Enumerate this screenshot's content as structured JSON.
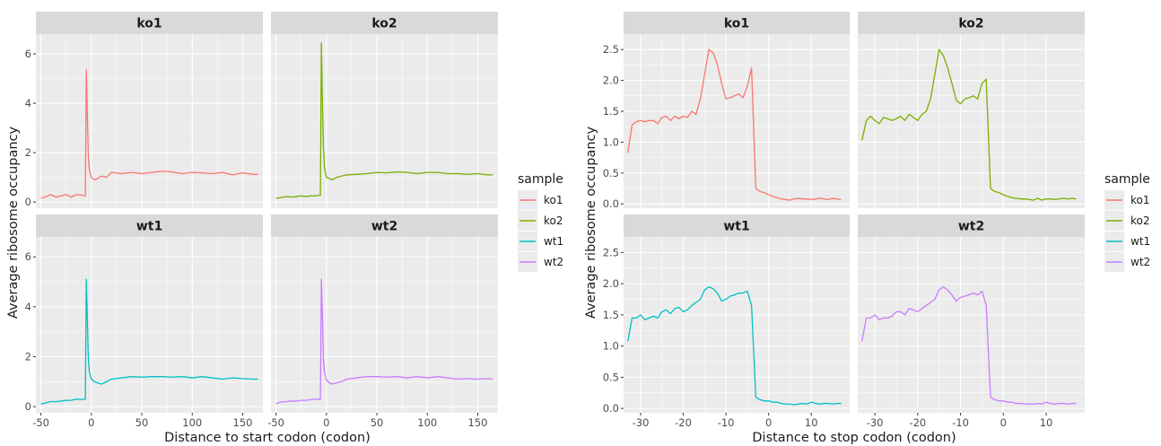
{
  "chart_data": [
    {
      "type": "line",
      "facet_by": "sample",
      "xlabel": "Distance to start codon (codon)",
      "ylabel": "Average ribosome occupancy",
      "xlim": [
        -55,
        170
      ],
      "ylim": [
        -0.25,
        6.8
      ],
      "xticks": [
        -50,
        0,
        50,
        100,
        150
      ],
      "yticks": [
        0,
        2,
        4,
        6
      ],
      "series": [
        {
          "name": "ko1",
          "x": [
            -50,
            -45,
            -40,
            -35,
            -30,
            -25,
            -20,
            -15,
            -10,
            -6,
            -5,
            -4,
            -3,
            -2,
            0,
            3,
            6,
            10,
            15,
            20,
            30,
            40,
            50,
            60,
            70,
            80,
            90,
            100,
            110,
            120,
            130,
            140,
            150,
            160,
            165
          ],
          "values": [
            0.15,
            0.22,
            0.3,
            0.2,
            0.25,
            0.3,
            0.2,
            0.3,
            0.28,
            0.25,
            5.35,
            3.5,
            1.8,
            1.3,
            1.0,
            0.9,
            0.95,
            1.05,
            1.0,
            1.2,
            1.15,
            1.2,
            1.15,
            1.2,
            1.25,
            1.22,
            1.15,
            1.2,
            1.18,
            1.15,
            1.2,
            1.1,
            1.18,
            1.12,
            1.12
          ]
        },
        {
          "name": "ko2",
          "x": [
            -50,
            -45,
            -40,
            -35,
            -30,
            -25,
            -20,
            -15,
            -10,
            -6,
            -5,
            -4,
            -3,
            -2,
            0,
            3,
            6,
            10,
            15,
            20,
            30,
            40,
            50,
            60,
            70,
            80,
            90,
            100,
            110,
            120,
            130,
            140,
            150,
            160,
            165
          ],
          "values": [
            0.15,
            0.18,
            0.22,
            0.2,
            0.22,
            0.25,
            0.22,
            0.25,
            0.25,
            0.28,
            6.45,
            4.0,
            2.2,
            1.4,
            1.0,
            0.95,
            0.9,
            1.0,
            1.05,
            1.1,
            1.12,
            1.15,
            1.2,
            1.18,
            1.22,
            1.2,
            1.15,
            1.2,
            1.2,
            1.15,
            1.15,
            1.12,
            1.15,
            1.1,
            1.1
          ]
        },
        {
          "name": "wt1",
          "x": [
            -50,
            -45,
            -40,
            -35,
            -30,
            -25,
            -20,
            -15,
            -10,
            -6,
            -5,
            -4,
            -3,
            -2,
            0,
            3,
            6,
            10,
            15,
            20,
            30,
            40,
            50,
            60,
            70,
            80,
            90,
            100,
            110,
            120,
            130,
            140,
            150,
            160,
            165
          ],
          "values": [
            0.1,
            0.15,
            0.2,
            0.2,
            0.22,
            0.25,
            0.25,
            0.3,
            0.28,
            0.3,
            5.1,
            3.5,
            1.9,
            1.4,
            1.1,
            1.0,
            0.95,
            0.9,
            1.0,
            1.1,
            1.15,
            1.2,
            1.18,
            1.2,
            1.2,
            1.18,
            1.2,
            1.15,
            1.2,
            1.15,
            1.1,
            1.15,
            1.12,
            1.1,
            1.1
          ]
        },
        {
          "name": "wt2",
          "x": [
            -50,
            -45,
            -40,
            -35,
            -30,
            -25,
            -20,
            -15,
            -10,
            -6,
            -5,
            -4,
            -3,
            -2,
            0,
            3,
            6,
            10,
            15,
            20,
            30,
            40,
            50,
            60,
            70,
            80,
            90,
            100,
            110,
            120,
            130,
            140,
            150,
            160,
            165
          ],
          "values": [
            0.12,
            0.18,
            0.2,
            0.22,
            0.22,
            0.25,
            0.25,
            0.28,
            0.3,
            0.3,
            5.1,
            3.6,
            1.9,
            1.4,
            1.05,
            0.95,
            0.9,
            0.95,
            1.0,
            1.1,
            1.15,
            1.2,
            1.2,
            1.18,
            1.2,
            1.15,
            1.2,
            1.15,
            1.2,
            1.15,
            1.1,
            1.12,
            1.1,
            1.12,
            1.1
          ]
        }
      ]
    },
    {
      "type": "line",
      "facet_by": "sample",
      "xlabel": "Distance to stop codon (codon)",
      "ylabel": "Average ribosome occupancy",
      "xlim": [
        -34,
        19
      ],
      "ylim": [
        -0.07,
        2.75
      ],
      "xticks": [
        -30,
        -20,
        -10,
        0,
        10
      ],
      "yticks": [
        0.0,
        0.5,
        1.0,
        1.5,
        2.0,
        2.5
      ],
      "series": [
        {
          "name": "ko1",
          "x": [
            -33,
            -32,
            -31,
            -30,
            -29,
            -28,
            -27,
            -26,
            -25,
            -24,
            -23,
            -22,
            -21,
            -20,
            -19,
            -18,
            -17,
            -16,
            -15,
            -14,
            -13,
            -12,
            -11,
            -10,
            -9,
            -8,
            -7,
            -6,
            -5,
            -4,
            -3,
            -2,
            -1,
            0,
            1,
            2,
            3,
            4,
            5,
            6,
            7,
            8,
            9,
            10,
            11,
            12,
            13,
            14,
            15,
            16,
            17
          ],
          "values": [
            0.83,
            1.28,
            1.33,
            1.35,
            1.33,
            1.35,
            1.35,
            1.3,
            1.4,
            1.42,
            1.35,
            1.42,
            1.38,
            1.42,
            1.4,
            1.5,
            1.45,
            1.7,
            2.1,
            2.5,
            2.45,
            2.25,
            1.95,
            1.7,
            1.72,
            1.75,
            1.78,
            1.72,
            1.9,
            2.2,
            0.25,
            0.2,
            0.18,
            0.15,
            0.12,
            0.1,
            0.08,
            0.07,
            0.06,
            0.08,
            0.09,
            0.08,
            0.08,
            0.07,
            0.08,
            0.09,
            0.08,
            0.07,
            0.09,
            0.08,
            0.07
          ]
        },
        {
          "name": "ko2",
          "x": [
            -33,
            -32,
            -31,
            -30,
            -29,
            -28,
            -27,
            -26,
            -25,
            -24,
            -23,
            -22,
            -21,
            -20,
            -19,
            -18,
            -17,
            -16,
            -15,
            -14,
            -13,
            -12,
            -11,
            -10,
            -9,
            -8,
            -7,
            -6,
            -5,
            -4,
            -3,
            -2,
            -1,
            0,
            1,
            2,
            3,
            4,
            5,
            6,
            7,
            8,
            9,
            10,
            11,
            12,
            13,
            14,
            15,
            16,
            17
          ],
          "values": [
            1.03,
            1.35,
            1.42,
            1.35,
            1.3,
            1.4,
            1.38,
            1.35,
            1.38,
            1.42,
            1.35,
            1.45,
            1.4,
            1.35,
            1.45,
            1.5,
            1.7,
            2.1,
            2.5,
            2.4,
            2.2,
            1.95,
            1.68,
            1.62,
            1.7,
            1.72,
            1.75,
            1.7,
            1.95,
            2.02,
            0.25,
            0.2,
            0.18,
            0.15,
            0.12,
            0.1,
            0.09,
            0.08,
            0.08,
            0.07,
            0.06,
            0.09,
            0.06,
            0.08,
            0.08,
            0.07,
            0.08,
            0.09,
            0.08,
            0.09,
            0.08
          ]
        },
        {
          "name": "wt1",
          "x": [
            -33,
            -32,
            -31,
            -30,
            -29,
            -28,
            -27,
            -26,
            -25,
            -24,
            -23,
            -22,
            -21,
            -20,
            -19,
            -18,
            -17,
            -16,
            -15,
            -14,
            -13,
            -12,
            -11,
            -10,
            -9,
            -8,
            -7,
            -6,
            -5,
            -4,
            -3,
            -2,
            -1,
            0,
            1,
            2,
            3,
            4,
            5,
            6,
            7,
            8,
            9,
            10,
            11,
            12,
            13,
            14,
            15,
            16,
            17
          ],
          "values": [
            1.08,
            1.45,
            1.45,
            1.5,
            1.42,
            1.45,
            1.48,
            1.45,
            1.55,
            1.58,
            1.52,
            1.6,
            1.62,
            1.55,
            1.58,
            1.65,
            1.7,
            1.75,
            1.9,
            1.95,
            1.92,
            1.85,
            1.72,
            1.75,
            1.8,
            1.82,
            1.85,
            1.85,
            1.88,
            1.65,
            0.18,
            0.14,
            0.12,
            0.12,
            0.1,
            0.1,
            0.08,
            0.07,
            0.07,
            0.06,
            0.07,
            0.08,
            0.07,
            0.1,
            0.08,
            0.07,
            0.08,
            0.08,
            0.07,
            0.08,
            0.08
          ]
        },
        {
          "name": "wt2",
          "x": [
            -33,
            -32,
            -31,
            -30,
            -29,
            -28,
            -27,
            -26,
            -25,
            -24,
            -23,
            -22,
            -21,
            -20,
            -19,
            -18,
            -17,
            -16,
            -15,
            -14,
            -13,
            -12,
            -11,
            -10,
            -9,
            -8,
            -7,
            -6,
            -5,
            -4,
            -3,
            -2,
            -1,
            0,
            1,
            2,
            3,
            4,
            5,
            6,
            7,
            8,
            9,
            10,
            11,
            12,
            13,
            14,
            15,
            16,
            17
          ],
          "values": [
            1.08,
            1.45,
            1.45,
            1.5,
            1.42,
            1.45,
            1.45,
            1.48,
            1.55,
            1.55,
            1.5,
            1.6,
            1.58,
            1.55,
            1.6,
            1.65,
            1.7,
            1.75,
            1.9,
            1.95,
            1.9,
            1.82,
            1.72,
            1.78,
            1.8,
            1.82,
            1.85,
            1.82,
            1.88,
            1.65,
            0.18,
            0.14,
            0.12,
            0.12,
            0.1,
            0.1,
            0.08,
            0.08,
            0.07,
            0.07,
            0.07,
            0.08,
            0.07,
            0.1,
            0.08,
            0.07,
            0.08,
            0.08,
            0.07,
            0.08,
            0.08
          ]
        }
      ]
    }
  ],
  "legend": {
    "title": "sample",
    "entries": [
      "ko1",
      "ko2",
      "wt1",
      "wt2"
    ]
  },
  "colors": {
    "ko1": "#F8766D",
    "ko2": "#7CAE00",
    "wt1": "#00BFC4",
    "wt2": "#C77CFF"
  }
}
